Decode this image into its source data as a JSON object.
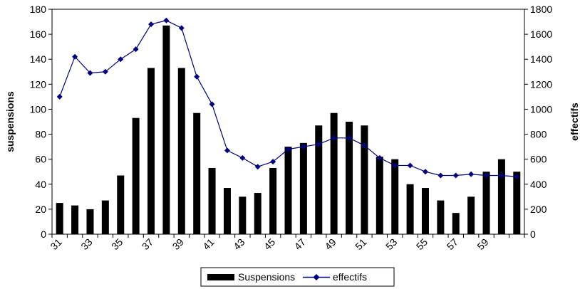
{
  "chart_data": {
    "type": "bar",
    "categories": [
      "31",
      "32",
      "33",
      "34",
      "35",
      "36",
      "37",
      "38",
      "39",
      "40",
      "41",
      "42",
      "43",
      "44",
      "45",
      "46",
      "47",
      "48",
      "49",
      "50",
      "51",
      "52",
      "53",
      "54",
      "55",
      "56",
      "57",
      "58",
      "59",
      "60",
      "61"
    ],
    "x_tick_labels": [
      "31",
      "33",
      "35",
      "37",
      "39",
      "41",
      "43",
      "45",
      "47",
      "49",
      "51",
      "53",
      "55",
      "57",
      "59"
    ],
    "series": [
      {
        "name": "Suspensions",
        "type": "bar",
        "axis": "left",
        "color": "#000000",
        "values": [
          25,
          23,
          20,
          27,
          47,
          93,
          133,
          167,
          133,
          97,
          53,
          37,
          30,
          33,
          53,
          70,
          73,
          87,
          97,
          90,
          87,
          62,
          60,
          40,
          37,
          27,
          17,
          30,
          50,
          60,
          50
        ]
      },
      {
        "name": "effectifs",
        "type": "line",
        "axis": "right",
        "color": "#000080",
        "marker": "diamond",
        "values": [
          1100,
          1420,
          1290,
          1300,
          1400,
          1480,
          1680,
          1710,
          1650,
          1260,
          1040,
          670,
          610,
          540,
          580,
          680,
          700,
          720,
          770,
          770,
          710,
          610,
          550,
          550,
          500,
          470,
          470,
          480,
          470,
          470,
          460
        ]
      }
    ],
    "ylabel": "suspensions",
    "ylabel_right": "effectifs",
    "ylim": [
      0,
      180
    ],
    "y_ticks": [
      "0",
      "20",
      "40",
      "60",
      "80",
      "100",
      "120",
      "140",
      "160",
      "180"
    ],
    "ylim_right": [
      0,
      1800
    ],
    "y_ticks_right": [
      "0",
      "200",
      "400",
      "600",
      "800",
      "1000",
      "1200",
      "1400",
      "1600",
      "1800"
    ],
    "grid": false,
    "legend_position": "bottom"
  }
}
